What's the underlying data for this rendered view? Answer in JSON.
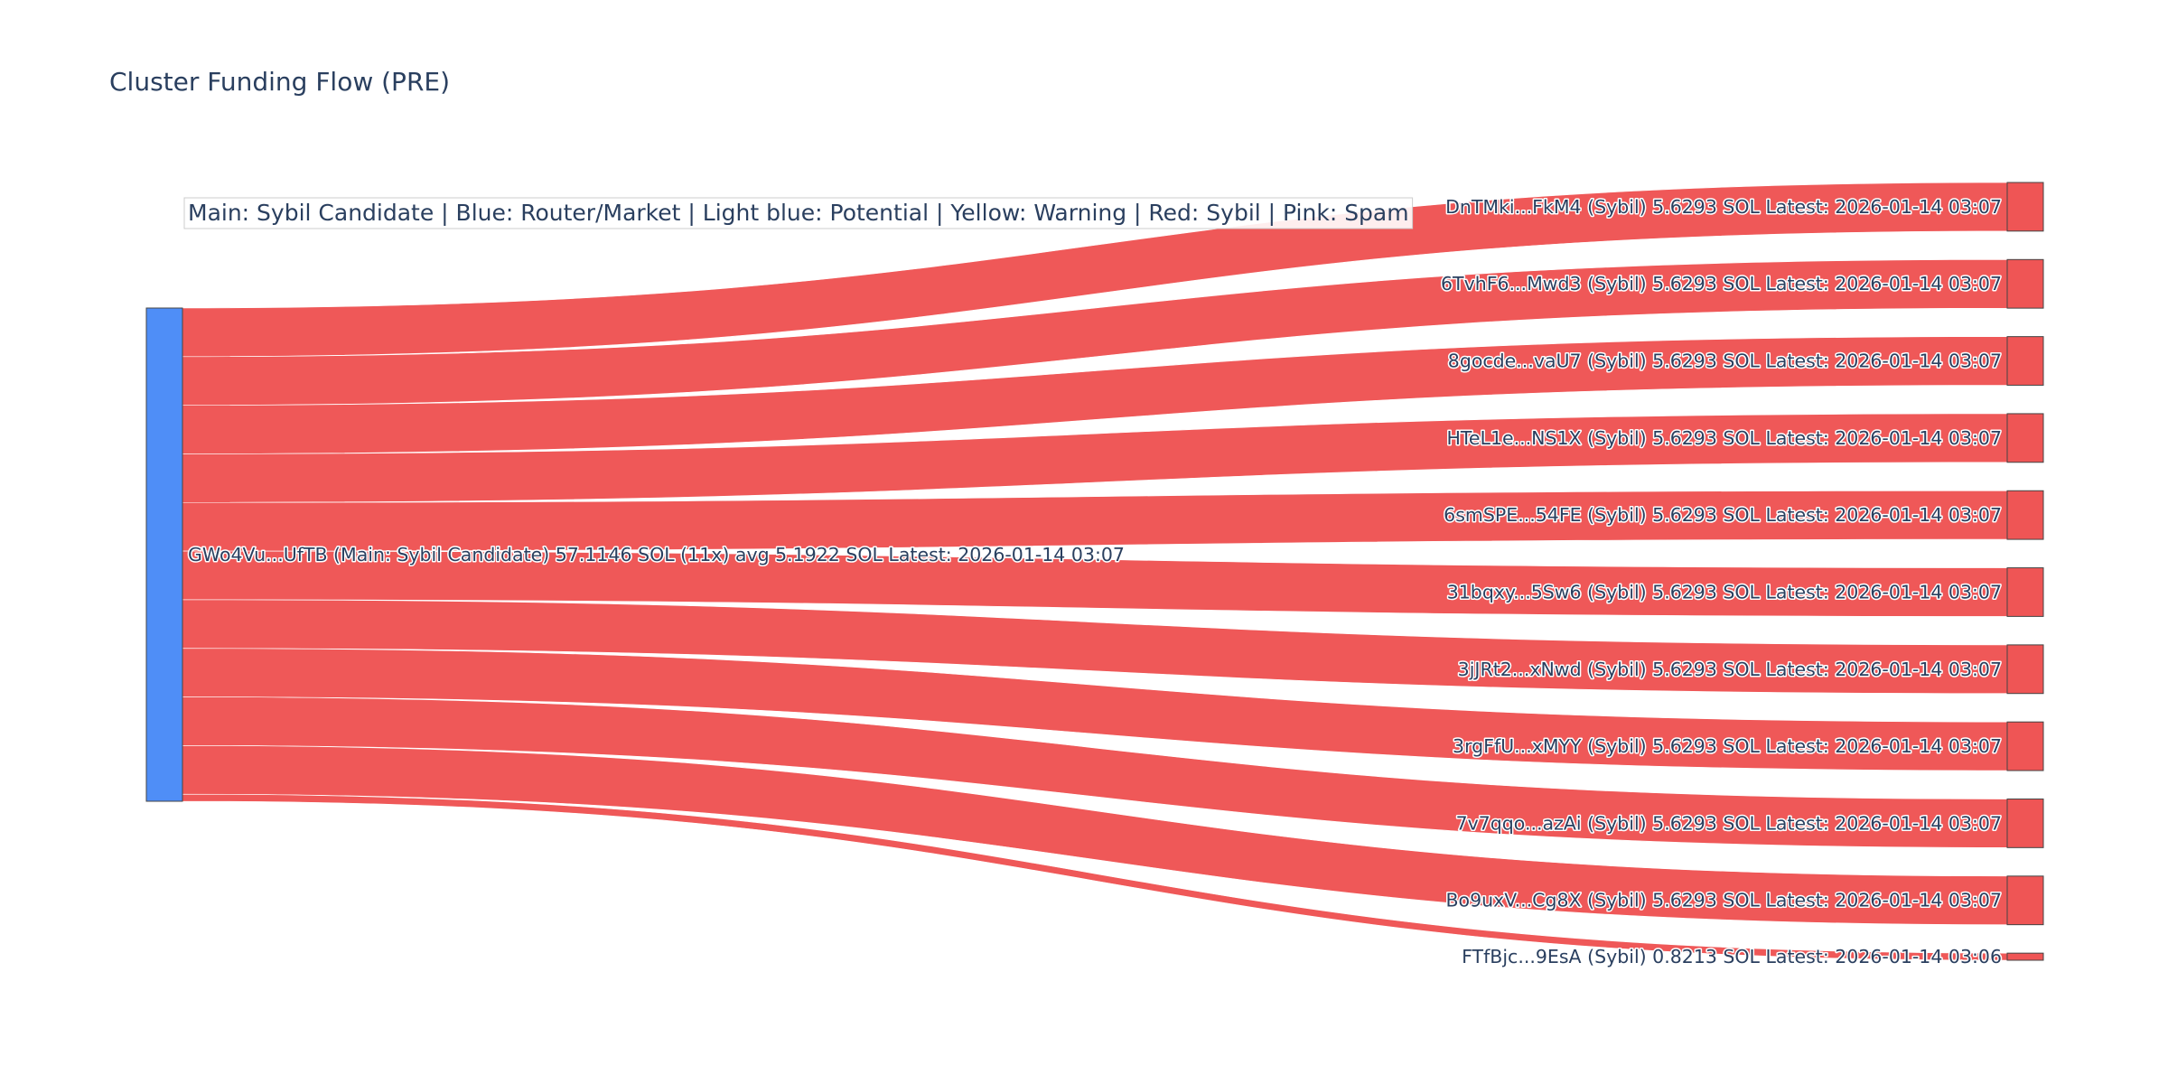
{
  "chart_data": {
    "type": "sankey",
    "title": "Cluster Funding Flow (PRE)",
    "annotation": "Main: Sybil Candidate  |  Blue: Router/Market | Light blue: Potential | Yellow: Warning | Red: Sybil | Pink: Spam",
    "colors": {
      "main_node": "#4f8ef7",
      "sybil_node": "#ef5555",
      "sybil_link": "#ef5555",
      "node_outline": "#444444",
      "text": "#2a3f5f"
    },
    "source": {
      "id": "GWo4Vu...UfTB",
      "label": "GWo4Vu...UfTB (Main: Sybil Candidate) 57.1146 SOL (11x) avg 5.1922 SOL Latest: 2026-01-14 03:07",
      "category": "Sybil Candidate",
      "total_sol": 57.1146
    },
    "targets": [
      {
        "id": "DnTMki...FkM4",
        "label": "DnTMki...FkM4 (Sybil) 5.6293 SOL Latest: 2026-01-14 03:07",
        "category": "Sybil",
        "value": 5.6293
      },
      {
        "id": "6TvhF6...Mwd3",
        "label": "6TvhF6...Mwd3 (Sybil) 5.6293 SOL Latest: 2026-01-14 03:07",
        "category": "Sybil",
        "value": 5.6293
      },
      {
        "id": "8gocde...vaU7",
        "label": "8gocde...vaU7 (Sybil) 5.6293 SOL Latest: 2026-01-14 03:07",
        "category": "Sybil",
        "value": 5.6293
      },
      {
        "id": "HTeL1e...NS1X",
        "label": "HTeL1e...NS1X (Sybil) 5.6293 SOL Latest: 2026-01-14 03:07",
        "category": "Sybil",
        "value": 5.6293
      },
      {
        "id": "6smSPE...54FE",
        "label": "6smSPE...54FE (Sybil) 5.6293 SOL Latest: 2026-01-14 03:07",
        "category": "Sybil",
        "value": 5.6293
      },
      {
        "id": "31bqxy...5Sw6",
        "label": "31bqxy...5Sw6 (Sybil) 5.6293 SOL Latest: 2026-01-14 03:07",
        "category": "Sybil",
        "value": 5.6293
      },
      {
        "id": "3jJRt2...xNwd",
        "label": "3jJRt2...xNwd (Sybil) 5.6293 SOL Latest: 2026-01-14 03:07",
        "category": "Sybil",
        "value": 5.6293
      },
      {
        "id": "3rgFfU...xMYY",
        "label": "3rgFfU...xMYY (Sybil) 5.6293 SOL Latest: 2026-01-14 03:07",
        "category": "Sybil",
        "value": 5.6293
      },
      {
        "id": "7v7qqo...azAi",
        "label": "7v7qqo...azAi (Sybil) 5.6293 SOL Latest: 2026-01-14 03:07",
        "category": "Sybil",
        "value": 5.6293
      },
      {
        "id": "Bo9uxV...Cg8X",
        "label": "Bo9uxV...Cg8X (Sybil) 5.6293 SOL Latest: 2026-01-14 03:07",
        "category": "Sybil",
        "value": 5.6293
      },
      {
        "id": "FTfBjc...9EsA",
        "label": "FTfBjc...9EsA (Sybil) 0.8213 SOL Latest: 2026-01-14 03:06",
        "category": "Sybil",
        "value": 0.8213
      }
    ]
  }
}
